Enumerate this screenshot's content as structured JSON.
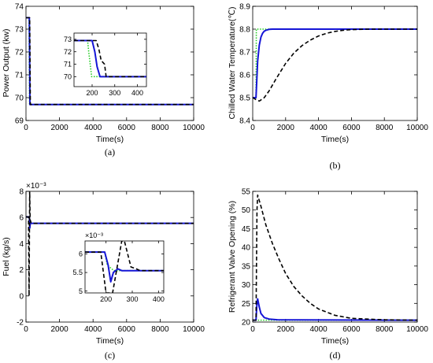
{
  "colors": {
    "green": "#22cc22",
    "blue": "#1515d6",
    "black": "#000000"
  },
  "chart_data": [
    {
      "id": "a",
      "type": "line",
      "panel_label": "(a)",
      "xlabel": "Time(s)",
      "ylabel": "Power Output (kw)",
      "xlim": [
        0,
        10000
      ],
      "ylim": [
        69,
        74
      ],
      "xticks": [
        0,
        2000,
        4000,
        6000,
        8000,
        10000
      ],
      "yticks": [
        69,
        70,
        71,
        72,
        73,
        74
      ],
      "x_tick_labels": [
        "0",
        "2000",
        "4000",
        "6000",
        "8000",
        "10000"
      ],
      "y_tick_labels": [
        "69",
        "70",
        "71",
        "72",
        "73",
        "74"
      ],
      "series": [
        {
          "style": "green-dotted",
          "x": [
            0,
            180,
            200,
            215,
            10000
          ],
          "y": [
            73.5,
            73.5,
            71.0,
            69.7,
            69.7
          ]
        },
        {
          "style": "blue-solid",
          "x": [
            0,
            200,
            215,
            235,
            10000
          ],
          "y": [
            73.5,
            73.5,
            72.0,
            69.7,
            69.7
          ]
        },
        {
          "style": "black-dashed",
          "x": [
            0,
            220,
            235,
            260,
            10000
          ],
          "y": [
            73.5,
            73.5,
            72.3,
            69.7,
            69.7
          ]
        }
      ],
      "inset": {
        "xlim": [
          120,
          440
        ],
        "ylim": [
          69.2,
          73.5
        ],
        "xticks": [
          200,
          300,
          400
        ],
        "yticks": [
          70,
          71,
          72,
          73
        ],
        "x_tick_labels": [
          "200",
          "300",
          "400"
        ],
        "y_tick_labels": [
          "70",
          "71",
          "72",
          "73"
        ],
        "series": [
          {
            "style": "green-dotted",
            "x": [
              120,
              180,
              185,
              198,
              440
            ],
            "y": [
              72.9,
              72.9,
              72.0,
              70.0,
              70.0
            ]
          },
          {
            "style": "blue-solid",
            "x": [
              120,
              200,
              212,
              222,
              235,
              440
            ],
            "y": [
              72.9,
              72.9,
              72.0,
              70.8,
              70.0,
              70.0
            ]
          },
          {
            "style": "black-dashed",
            "x": [
              120,
              218,
              230,
              240,
              255,
              262,
              440
            ],
            "y": [
              72.9,
              72.9,
              72.2,
              71.3,
              71.0,
              70.0,
              70.0
            ]
          }
        ]
      }
    },
    {
      "id": "b",
      "type": "line",
      "panel_label": "(b)",
      "xlabel": "Time(s)",
      "ylabel": "Chilled Water Temperature(℃)",
      "xlim": [
        0,
        10000
      ],
      "ylim": [
        8.4,
        8.9
      ],
      "xticks": [
        0,
        2000,
        4000,
        6000,
        8000,
        10000
      ],
      "yticks": [
        8.4,
        8.5,
        8.6,
        8.7,
        8.8,
        8.9
      ],
      "x_tick_labels": [
        "0",
        "2000",
        "4000",
        "6000",
        "8000",
        "10000"
      ],
      "y_tick_labels": [
        "8.4",
        "8.5",
        "8.6",
        "8.7",
        "8.8",
        "8.9"
      ],
      "series": [
        {
          "style": "green-dotted",
          "x": [
            0,
            200,
            220,
            10000
          ],
          "y": [
            8.5,
            8.5,
            8.8,
            8.8
          ]
        },
        {
          "style": "blue-solid",
          "x": [
            0,
            200,
            300,
            400,
            500,
            600,
            700,
            800,
            1000,
            1200,
            10000
          ],
          "y": [
            8.5,
            8.5,
            8.66,
            8.73,
            8.765,
            8.782,
            8.791,
            8.795,
            8.799,
            8.8,
            8.8
          ]
        },
        {
          "style": "black-dashed",
          "x": [
            0,
            230,
            400,
            700,
            1000,
            1400,
            2000,
            2500,
            3000,
            3500,
            4000,
            4500,
            5000,
            5500,
            6000,
            7000,
            10000
          ],
          "y": [
            8.5,
            8.49,
            8.485,
            8.5,
            8.53,
            8.58,
            8.65,
            8.695,
            8.728,
            8.752,
            8.77,
            8.782,
            8.79,
            8.795,
            8.798,
            8.8,
            8.8
          ]
        }
      ]
    },
    {
      "id": "c",
      "type": "line",
      "panel_label": "(c)",
      "xlabel": "Time(s)",
      "ylabel": "Fuel (kg/s)",
      "multiplier_label": "×10⁻³",
      "xlim": [
        0,
        10000
      ],
      "ylim": [
        -2,
        8
      ],
      "xticks": [
        0,
        2000,
        4000,
        6000,
        8000,
        10000
      ],
      "yticks": [
        -2,
        0,
        2,
        4,
        6,
        8
      ],
      "x_tick_labels": [
        "0",
        "2000",
        "4000",
        "6000",
        "8000",
        "10000"
      ],
      "y_tick_labels": [
        "-2",
        "0",
        "2",
        "4",
        "6",
        "8"
      ],
      "series": [
        {
          "style": "green-dotted",
          "x": [
            0,
            200,
            230,
            10000
          ],
          "y": [
            6.05,
            6.05,
            5.55,
            5.55
          ]
        },
        {
          "style": "blue-solid",
          "x": [
            0,
            200,
            230,
            250,
            290,
            10000
          ],
          "y": [
            6.05,
            6.05,
            5.2,
            5.5,
            5.55,
            5.55
          ]
        },
        {
          "style": "black-dashed",
          "x": [
            0,
            150,
            185,
            220,
            250,
            270,
            300,
            350,
            10000
          ],
          "y": [
            6.05,
            6.05,
            0,
            8.0,
            5.8,
            5.75,
            5.6,
            5.55,
            5.55
          ]
        }
      ],
      "inset": {
        "multiplier_label": "×10⁻³",
        "xlim": [
          120,
          420
        ],
        "ylim": [
          4.95,
          6.35
        ],
        "xticks": [
          200,
          300,
          400
        ],
        "yticks": [
          5,
          5.5,
          6
        ],
        "x_tick_labels": [
          "200",
          "300",
          "400"
        ],
        "y_tick_labels": [
          "5",
          "5.5",
          "6"
        ],
        "series": [
          {
            "style": "green-dotted",
            "x": [
              120,
              195,
              205,
              230,
              420
            ],
            "y": [
              6.05,
              6.05,
              5.7,
              5.55,
              5.55
            ]
          },
          {
            "style": "blue-solid",
            "x": [
              120,
              195,
              208,
              218,
              228,
              245,
              260,
              420
            ],
            "y": [
              6.05,
              6.05,
              5.7,
              5.25,
              5.5,
              5.6,
              5.55,
              5.55
            ]
          },
          {
            "style": "black-dashed",
            "x": [
              120,
              180,
              200,
              225,
              260,
              270,
              295,
              315,
              330,
              420
            ],
            "y": [
              6.05,
              6.05,
              4.95,
              4.95,
              6.35,
              6.35,
              5.65,
              5.6,
              5.55,
              5.55
            ]
          }
        ]
      }
    },
    {
      "id": "d",
      "type": "line",
      "panel_label": "(d)",
      "xlabel": "Time(s)",
      "ylabel": "Refrigerant Valve Opening (%)",
      "xlim": [
        0,
        10000
      ],
      "ylim": [
        20,
        55
      ],
      "xticks": [
        0,
        2000,
        4000,
        6000,
        8000,
        10000
      ],
      "yticks": [
        20,
        25,
        30,
        35,
        40,
        45,
        50,
        55
      ],
      "x_tick_labels": [
        "0",
        "2000",
        "4000",
        "6000",
        "8000",
        "10000"
      ],
      "y_tick_labels": [
        "20",
        "25",
        "30",
        "35",
        "40",
        "45",
        "50",
        "55"
      ],
      "series": [
        {
          "style": "green-dotted",
          "x": [
            0,
            10000
          ],
          "y": [
            20.5,
            20.5
          ]
        },
        {
          "style": "blue-solid",
          "x": [
            0,
            200,
            250,
            300,
            400,
            500,
            700,
            1000,
            1500,
            10000
          ],
          "y": [
            20.5,
            20.5,
            24.5,
            26.2,
            24.0,
            22.3,
            21.2,
            20.8,
            20.6,
            20.5
          ]
        },
        {
          "style": "black-dashed",
          "x": [
            0,
            200,
            260,
            300,
            500,
            800,
            1200,
            1600,
            2000,
            2500,
            3000,
            3500,
            4000,
            5000,
            6000,
            8000,
            10000
          ],
          "y": [
            20.5,
            20.5,
            50.0,
            54.0,
            51.0,
            46.0,
            41.0,
            36.8,
            33.0,
            29.5,
            27.0,
            25.0,
            23.5,
            21.8,
            21.0,
            20.6,
            20.5
          ]
        }
      ]
    }
  ]
}
